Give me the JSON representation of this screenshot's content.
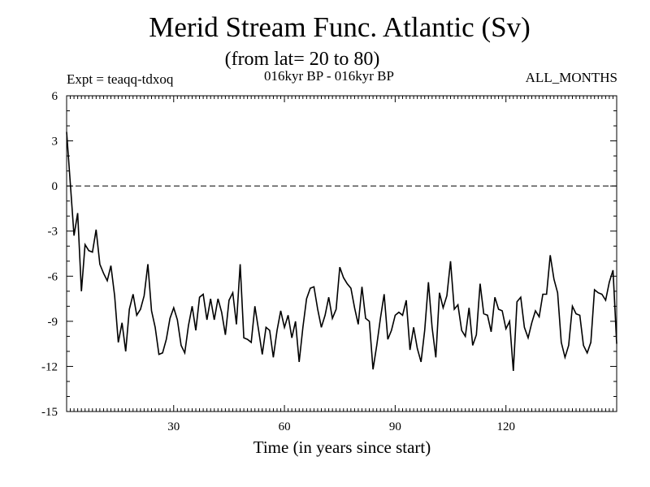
{
  "chart_data": {
    "type": "line",
    "title": "Merid Stream Func. Atlantic (Sv)",
    "subtitle": "(from lat= 20 to 80)",
    "experiment_label": "Expt = teaqq-tdxoq",
    "period_label": "016kyr BP - 016kyr BP",
    "months_label": "ALL_MONTHS",
    "xlabel": "Time (in years since start)",
    "ylabel": "",
    "xlim": [
      1,
      150
    ],
    "ylim": [
      -15,
      6
    ],
    "xticks": [
      30,
      60,
      90,
      120
    ],
    "yticks": [
      6,
      3,
      0,
      -3,
      -6,
      -9,
      -12,
      -15
    ],
    "reference_line": 0,
    "series": [
      {
        "name": "Merid Stream Func.",
        "x": [
          1,
          2,
          3,
          4,
          5,
          6,
          7,
          8,
          9,
          10,
          11,
          12,
          13,
          14,
          15,
          16,
          17,
          18,
          19,
          20,
          21,
          22,
          23,
          24,
          25,
          26,
          27,
          28,
          29,
          30,
          31,
          32,
          33,
          34,
          35,
          36,
          37,
          38,
          39,
          40,
          41,
          42,
          43,
          44,
          45,
          46,
          47,
          48,
          49,
          50,
          51,
          52,
          53,
          54,
          55,
          56,
          57,
          58,
          59,
          60,
          61,
          62,
          63,
          64,
          65,
          66,
          67,
          68,
          69,
          70,
          71,
          72,
          73,
          74,
          75,
          76,
          77,
          78,
          79,
          80,
          81,
          82,
          83,
          84,
          85,
          86,
          87,
          88,
          89,
          90,
          91,
          92,
          93,
          94,
          95,
          96,
          97,
          98,
          99,
          100,
          101,
          102,
          103,
          104,
          105,
          106,
          107,
          108,
          109,
          110,
          111,
          112,
          113,
          114,
          115,
          116,
          117,
          118,
          119,
          120,
          121,
          122,
          123,
          124,
          125,
          126,
          127,
          128,
          129,
          130,
          131,
          132,
          133,
          134,
          135,
          136,
          137,
          138,
          139,
          140,
          141,
          142,
          143,
          144,
          145,
          146,
          147,
          148,
          149,
          150
        ],
        "values": [
          3.6,
          0.2,
          -3.3,
          -1.8,
          -7.0,
          -3.9,
          -4.3,
          -4.4,
          -2.9,
          -5.2,
          -5.8,
          -6.3,
          -5.3,
          -7.3,
          -10.4,
          -9.1,
          -11.0,
          -8.2,
          -7.2,
          -8.6,
          -8.2,
          -7.3,
          -5.2,
          -8.3,
          -9.4,
          -11.2,
          -11.1,
          -10.2,
          -8.8,
          -8.1,
          -8.9,
          -10.6,
          -11.1,
          -9.3,
          -8.0,
          -9.6,
          -7.4,
          -7.2,
          -8.9,
          -7.5,
          -8.9,
          -7.5,
          -8.4,
          -9.9,
          -7.6,
          -7.1,
          -9.2,
          -5.2,
          -10.1,
          -10.2,
          -10.4,
          -8.0,
          -9.6,
          -11.2,
          -9.4,
          -9.6,
          -11.4,
          -9.6,
          -8.3,
          -9.4,
          -8.6,
          -10.1,
          -9.0,
          -11.7,
          -9.4,
          -7.5,
          -6.8,
          -6.7,
          -8.2,
          -9.4,
          -8.6,
          -7.4,
          -8.8,
          -8.2,
          -5.4,
          -6.1,
          -6.5,
          -6.8,
          -8.1,
          -9.2,
          -6.7,
          -8.8,
          -9.0,
          -12.2,
          -10.6,
          -8.8,
          -7.2,
          -10.2,
          -9.6,
          -8.6,
          -8.4,
          -8.6,
          -7.6,
          -10.9,
          -9.4,
          -10.8,
          -11.7,
          -9.6,
          -6.4,
          -9.4,
          -11.4,
          -7.1,
          -8.1,
          -7.3,
          -5.0,
          -8.2,
          -7.9,
          -9.6,
          -10.0,
          -8.1,
          -10.6,
          -9.9,
          -6.5,
          -8.5,
          -8.6,
          -9.7,
          -7.4,
          -8.2,
          -8.3,
          -9.5,
          -9.0,
          -12.3,
          -7.7,
          -7.4,
          -9.4,
          -10.1,
          -9.1,
          -8.3,
          -8.7,
          -7.2,
          -7.2,
          -4.6,
          -6.2,
          -7.1,
          -10.4,
          -11.4,
          -10.6,
          -8.0,
          -8.5,
          -8.6,
          -10.6,
          -11.1,
          -10.4,
          -6.9,
          -7.1,
          -7.2,
          -7.6,
          -6.4,
          -5.6,
          -10.5
        ]
      }
    ]
  }
}
